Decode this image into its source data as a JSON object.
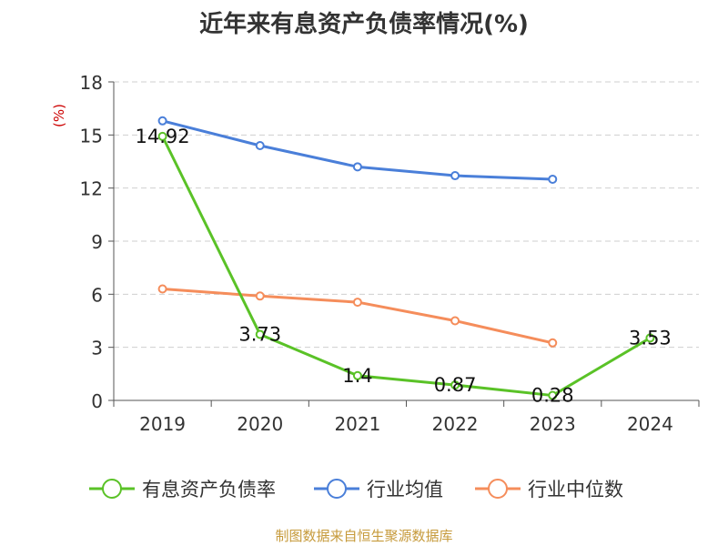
{
  "title": "近年来有息资产负债率情况(%)",
  "source": "制图数据来自恒生聚源数据库",
  "chart_data": {
    "type": "line",
    "title": "近年来有息资产负债率情况(%)",
    "ylabel": "(%)",
    "categories": [
      "2019",
      "2020",
      "2021",
      "2022",
      "2023",
      "2024"
    ],
    "ylim": [
      0,
      18
    ],
    "yticks": [
      0,
      3,
      6,
      9,
      12,
      15,
      18
    ],
    "grid": true,
    "legend_position": "bottom",
    "series": [
      {
        "name": "有息资产负债率",
        "color": "#5ac227",
        "values": [
          14.92,
          3.73,
          1.4,
          0.87,
          0.28,
          3.53
        ],
        "labels": [
          "14.92",
          "3.73",
          "1.4",
          "0.87",
          "0.28",
          "3.53"
        ]
      },
      {
        "name": "行业均值",
        "color": "#4a7fd9",
        "values": [
          15.8,
          14.4,
          13.2,
          12.7,
          12.5,
          null
        ]
      },
      {
        "name": "行业中位数",
        "color": "#f58d5b",
        "values": [
          6.3,
          5.9,
          5.55,
          4.5,
          3.25,
          null
        ]
      }
    ]
  }
}
